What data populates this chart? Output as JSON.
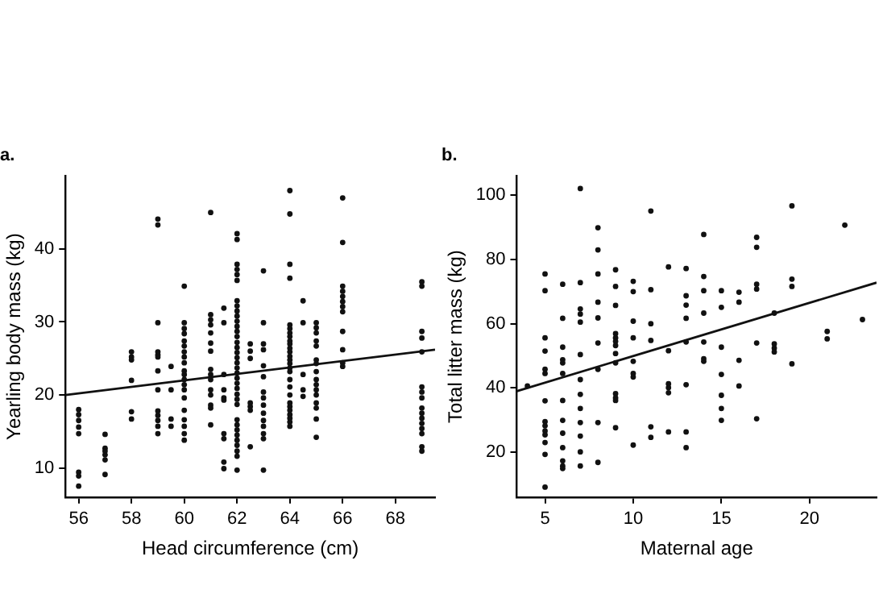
{
  "chart_data": [
    {
      "type": "scatter",
      "title": "a.",
      "xlabel": "Head circumference (cm)",
      "ylabel": "Yearling body mass (kg)",
      "xlim": [
        55.5,
        69.5
      ],
      "ylim": [
        6,
        50
      ],
      "xticks": [
        56,
        58,
        60,
        62,
        64,
        66,
        68
      ],
      "yticks": [
        10,
        20,
        30,
        40
      ],
      "grid": false,
      "legend": false,
      "series": [
        {
          "marker": "circle",
          "color": "#111111",
          "x": [
            56,
            56,
            56,
            56,
            56,
            56,
            56,
            56,
            57,
            57,
            57,
            57,
            57,
            57,
            58,
            58,
            58,
            58,
            58,
            58,
            59,
            59,
            59,
            59,
            59,
            59,
            59,
            59,
            59,
            59,
            59,
            59,
            59,
            59.5,
            59.5,
            59.5,
            59.5,
            60,
            60,
            60,
            60,
            60,
            60,
            60,
            60,
            60,
            60,
            60,
            60,
            60,
            60,
            60,
            60,
            60,
            60,
            60,
            60,
            61,
            61,
            61,
            61,
            61,
            61,
            61,
            61,
            61,
            61,
            61,
            61,
            61,
            61,
            61,
            61.5,
            61.5,
            61.5,
            61.5,
            61.5,
            61.5,
            61.5,
            61.5,
            61.5,
            61.5,
            62,
            62,
            62,
            62,
            62,
            62,
            62,
            62,
            62,
            62,
            62,
            62,
            62,
            62,
            62,
            62,
            62,
            62,
            62,
            62,
            62,
            62,
            62,
            62,
            62,
            62,
            62,
            62,
            62,
            62,
            62,
            62,
            62,
            62,
            62,
            62,
            62.5,
            62.5,
            62.5,
            62.5,
            62.5,
            62.5,
            62.5,
            63,
            63,
            63,
            63,
            63,
            63,
            63,
            63,
            63,
            63,
            63,
            63,
            63,
            63,
            63,
            64,
            64,
            64,
            64,
            64,
            64,
            64,
            64,
            64,
            64,
            64,
            64,
            64,
            64,
            64,
            64,
            64,
            64,
            64,
            64,
            64,
            64,
            64,
            64,
            64,
            64,
            64,
            64.5,
            64.5,
            64.5,
            64.5,
            64.5,
            65,
            65,
            65,
            65,
            65,
            65,
            65,
            65,
            65,
            65,
            65,
            65,
            65,
            65,
            65,
            65,
            66,
            66,
            66,
            66,
            66,
            66,
            66,
            66,
            66,
            66,
            66,
            66,
            69,
            69,
            69,
            69,
            69,
            69,
            69,
            69,
            69,
            69,
            69,
            69,
            69,
            69,
            69,
            69
          ],
          "values": [
            18,
            17.3,
            16.5,
            15.6,
            14.7,
            9.4,
            8.9,
            7.5,
            14.6,
            12.7,
            12.3,
            11.8,
            11.1,
            9.1,
            25.9,
            25.2,
            24.8,
            22,
            17.7,
            16.7,
            44.1,
            43.3,
            29.9,
            25.9,
            25.5,
            25.2,
            23.3,
            20.7,
            17.8,
            17.2,
            16.5,
            15.7,
            14.7,
            23.9,
            20.7,
            16.7,
            15.7,
            34.9,
            29.9,
            29.1,
            28.4,
            27.4,
            26.7,
            25.9,
            25.2,
            24.4,
            23.3,
            22.8,
            22.1,
            21.4,
            20.7,
            19.6,
            17.9,
            16.6,
            15.7,
            14.7,
            13.8,
            45,
            31,
            30.3,
            29.6,
            28.5,
            27.1,
            26,
            23.5,
            22.8,
            22.1,
            20.7,
            20,
            18.6,
            18.2,
            15.9,
            31.9,
            29.9,
            22.8,
            20.7,
            19.6,
            19.3,
            14.7,
            14,
            10.8,
            9.9,
            42.1,
            41.3,
            37.9,
            37.2,
            36.5,
            35.7,
            32.9,
            32.2,
            31.5,
            30.8,
            30.1,
            29.4,
            28.7,
            28,
            27.2,
            26.5,
            25.8,
            25.1,
            24.4,
            23.7,
            23,
            22.3,
            21.6,
            20.9,
            20.1,
            19.4,
            18.7,
            16.6,
            15.9,
            15.2,
            14.5,
            13.8,
            13.1,
            12.3,
            11.6,
            9.7,
            27,
            26,
            25,
            18.9,
            18.4,
            17.9,
            12.9,
            37,
            29.9,
            27,
            26.2,
            24,
            22.5,
            20.4,
            19.6,
            18.6,
            17.5,
            16.5,
            15.7,
            14.7,
            14,
            9.7,
            48,
            44.8,
            37.9,
            36,
            29.6,
            29.1,
            28.5,
            28,
            27.4,
            27,
            26.4,
            25.9,
            25.3,
            24.8,
            24.3,
            23.7,
            23.2,
            22.1,
            21.1,
            20,
            18.9,
            18.4,
            17.9,
            17.3,
            16.8,
            16.3,
            15.7,
            32.9,
            29.9,
            22.8,
            20.7,
            19.8,
            29.9,
            29.2,
            28.5,
            27.4,
            26.7,
            24.8,
            24.3,
            23.2,
            22.1,
            21.4,
            20.7,
            20,
            18.9,
            18.2,
            16.7,
            14.2,
            47,
            40.9,
            34.9,
            34.2,
            33.5,
            32.8,
            32.1,
            31.4,
            28.7,
            26.2,
            24.4,
            23.9,
            35.5,
            34.9,
            28.7,
            27.8,
            25.9,
            21.1,
            20.4,
            19.6,
            18.2,
            17.5,
            16.8,
            16.1,
            15.4,
            14.7,
            12.9,
            12.3
          ]
        },
        {
          "type": "line",
          "color": "#111111",
          "x": [
            55.5,
            69.5
          ],
          "values": [
            20,
            26.2
          ]
        }
      ]
    },
    {
      "type": "scatter",
      "title": "b.",
      "xlabel": "Maternal age",
      "ylabel": "Total litter mass (kg)",
      "xlim": [
        3.4,
        23.8
      ],
      "ylim": [
        6,
        106
      ],
      "xticks": [
        5,
        10,
        15,
        20
      ],
      "yticks": [
        20,
        40,
        60,
        80,
        100
      ],
      "grid": false,
      "legend": false,
      "series": [
        {
          "marker": "circle",
          "color": "#111111",
          "x": [
            4,
            5,
            5,
            5,
            5,
            5,
            5,
            5,
            5,
            5,
            5,
            5,
            5,
            5,
            5,
            6,
            6,
            6,
            6,
            6,
            6,
            6,
            6,
            6,
            6,
            6,
            6,
            6,
            7,
            7,
            7,
            7,
            7,
            7,
            7,
            7,
            7,
            7,
            7,
            7,
            7,
            8,
            8,
            8,
            8,
            8,
            8,
            8,
            8,
            8,
            9,
            9,
            9,
            9,
            9,
            9,
            9,
            9,
            9,
            9,
            9,
            9,
            9,
            10,
            10,
            10,
            10,
            10,
            10,
            10,
            10,
            11,
            11,
            11,
            11,
            11,
            11,
            12,
            12,
            12,
            12,
            12,
            12,
            13,
            13,
            13,
            13,
            13,
            13,
            13,
            13,
            14,
            14,
            14,
            14,
            14,
            14,
            14,
            15,
            15,
            15,
            15,
            15,
            15,
            15,
            16,
            16,
            16,
            16,
            17,
            17,
            17,
            17,
            17,
            17,
            18,
            18,
            18,
            18,
            19,
            19,
            19,
            19,
            21,
            21,
            22,
            23
          ],
          "values": [
            40.6,
            75.5,
            70.3,
            55.6,
            51.5,
            45.8,
            44.5,
            36,
            29.5,
            28.2,
            26.6,
            25.4,
            23,
            19.3,
            9.1,
            72.3,
            61.7,
            52.7,
            48.8,
            47.8,
            44.5,
            36.1,
            29.9,
            25.9,
            21.4,
            17.3,
            15.7,
            14.9,
            102.1,
            72.8,
            64.6,
            63,
            60.5,
            50.4,
            42.6,
            38,
            33.6,
            29.2,
            25,
            20.1,
            15.7,
            89.9,
            83,
            75.5,
            66.7,
            61.8,
            54,
            45.8,
            29.2,
            16.8,
            76.8,
            71.6,
            65.7,
            56.9,
            55.6,
            54.5,
            53.2,
            50.7,
            47.8,
            38.2,
            36.9,
            36.1,
            27.6,
            73.2,
            70,
            60.8,
            55.6,
            48.3,
            44.5,
            43.4,
            22.2,
            95.1,
            70.6,
            60,
            54.8,
            27.9,
            24.6,
            77.7,
            51.6,
            41.3,
            40.1,
            38.5,
            26.3,
            77.2,
            68.7,
            65.8,
            61.7,
            54.3,
            41,
            26.3,
            21.4,
            87.8,
            74.7,
            70.3,
            63.3,
            54.3,
            49.1,
            48.3,
            70.3,
            65.1,
            52.7,
            44.2,
            37.7,
            33.6,
            29.9,
            69.8,
            66.7,
            48.6,
            40.6,
            86.9,
            83.8,
            72.3,
            70.8,
            54,
            30.4,
            63.3,
            53.7,
            52.4,
            51.2,
            96.7,
            73.9,
            71.6,
            47.5,
            57.6,
            55.3,
            90.7,
            61.3
          ]
        },
        {
          "type": "line",
          "color": "#111111",
          "x": [
            3.4,
            23.8
          ],
          "values": [
            39,
            72.8
          ]
        }
      ]
    }
  ]
}
